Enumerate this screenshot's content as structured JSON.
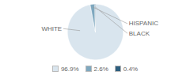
{
  "chart_data": {
    "type": "pie",
    "categories": [
      "WHITE",
      "HISPANIC",
      "BLACK"
    ],
    "values": [
      96.9,
      2.6,
      0.4
    ],
    "value_labels": [
      "96.9%",
      "2.6%",
      "0.4%"
    ],
    "colors": [
      "#d9e5ee",
      "#7fa8bf",
      "#2e5f7e"
    ],
    "legend": "bottom"
  }
}
